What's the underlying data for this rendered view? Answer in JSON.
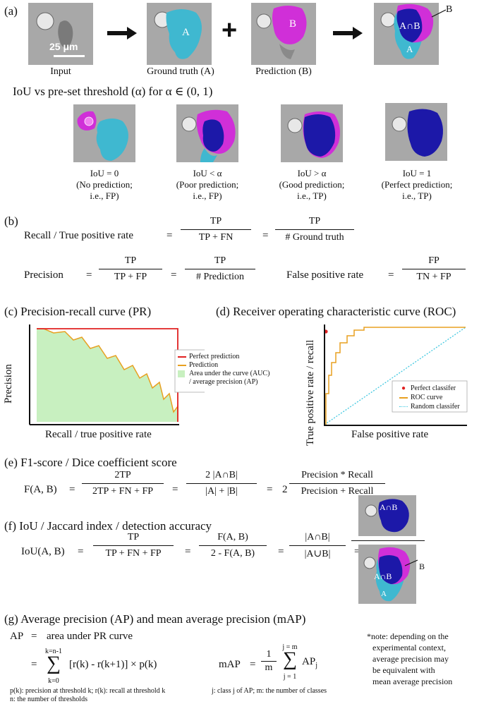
{
  "panel_a": {
    "label": "(a)",
    "scale_bar": "25 μm",
    "input_caption": "Input",
    "gt_caption": "Ground truth (A)",
    "pred_caption": "Prediction (B)",
    "gt_letter": "A",
    "pred_letter": "B",
    "overlap_label": "A∩B",
    "overlap_a": "A",
    "overlap_b": "B",
    "plus": "+",
    "iou_heading": "IoU vs pre-set threshold (α) for α ∈ (0, 1)",
    "cases": [
      {
        "line1": "IoU = 0",
        "line2": "(No prediction;",
        "line3": "i.e., FP)"
      },
      {
        "line1": "IoU < α",
        "line2": "(Poor prediction;",
        "line3": "i.e., FP)"
      },
      {
        "line1": "IoU > α",
        "line2": "(Good prediction;",
        "line3": "i.e., TP)"
      },
      {
        "line1": "IoU = 1",
        "line2": "(Perfect prediction;",
        "line3": "i.e., TP)"
      }
    ]
  },
  "panel_b": {
    "label": "(b)",
    "recall_lhs": "Recall / True positive rate",
    "eq": "=",
    "tp": "TP",
    "tp_fn": "TP + FN",
    "ground_truth": "# Ground truth",
    "precision_lhs": "Precision",
    "tp_fp": "TP + FP",
    "prediction": "# Prediction",
    "fpr_lhs": "False positive rate",
    "fp": "FP",
    "tn_fp": "TN + FP"
  },
  "panel_c": {
    "label": "(c)",
    "title": "Precision-recall curve (PR)",
    "ylabel": "Precision",
    "xlabel": "Recall / true positive rate",
    "legend": [
      "Perfect prediction",
      "Prediction",
      "Area under the curve (AUC)",
      "/ average precision (AP)"
    ]
  },
  "panel_d": {
    "label": "(d)",
    "title": "Receiver operating characteristic curve (ROC)",
    "ylabel": "True positive rate / recall",
    "xlabel": "False positive rate",
    "legend": [
      "Perfect classifer",
      "ROC curve",
      "Random classifer"
    ]
  },
  "panel_e": {
    "label": "(e)",
    "title": "F1-score / Dice coefficient score",
    "lhs": "F(A, B)",
    "eq": "=",
    "num1": "2TP",
    "den1": "2TP + FN + FP",
    "num2": "2 |A∩B|",
    "den2": "|A| + |B|",
    "coef": "2",
    "num3": "Precision * Recall",
    "den3": "Precision + Recall"
  },
  "panel_f": {
    "label": "(f)",
    "title": "IoU / Jaccard index / detection accuracy",
    "lhs": "IoU(A, B)",
    "eq": "=",
    "num1": "TP",
    "den1": "TP + FN + FP",
    "num2": "F(A, B)",
    "den2": "2 - F(A, B)",
    "num3": "|A∩B|",
    "den3": "|A∪B|",
    "img_top": "A∩B",
    "img_bottom": "A∩B",
    "img_a": "A",
    "img_b": "B"
  },
  "panel_g": {
    "label": "(g)",
    "title": "Average precision (AP) and mean average precision (mAP)",
    "ap_lhs": "AP",
    "ap_rhs": "area under PR curve",
    "eq": "=",
    "sum_top": "k=n-1",
    "sum_sym": "∑",
    "sum_bottom": "k=0",
    "sum_body": "[r(k) - r(k+1)] × p(k)",
    "map_lhs": "mAP",
    "one": "1",
    "m": "m",
    "map_top": "j = m",
    "map_bottom": "j = 1",
    "ap_j": "AP",
    "sub_j": "j",
    "foot1": "p(k): precision at threshold k; r(k): recall at threshold k",
    "foot2": "n: the number of thresholds",
    "foot3": "j: class j of AP; m: the number of classes",
    "note": [
      "*note: depending on the",
      "experimental context,",
      "average precision may",
      "be equivalent with",
      "mean average precision"
    ]
  },
  "colors": {
    "cyan": "#3fb8d0",
    "magenta": "#d02fd8",
    "navy": "#1c18a8",
    "red": "#e02020",
    "orange": "#e8a020",
    "green": "#c8f0c0",
    "dotted": "#40c8e0"
  }
}
